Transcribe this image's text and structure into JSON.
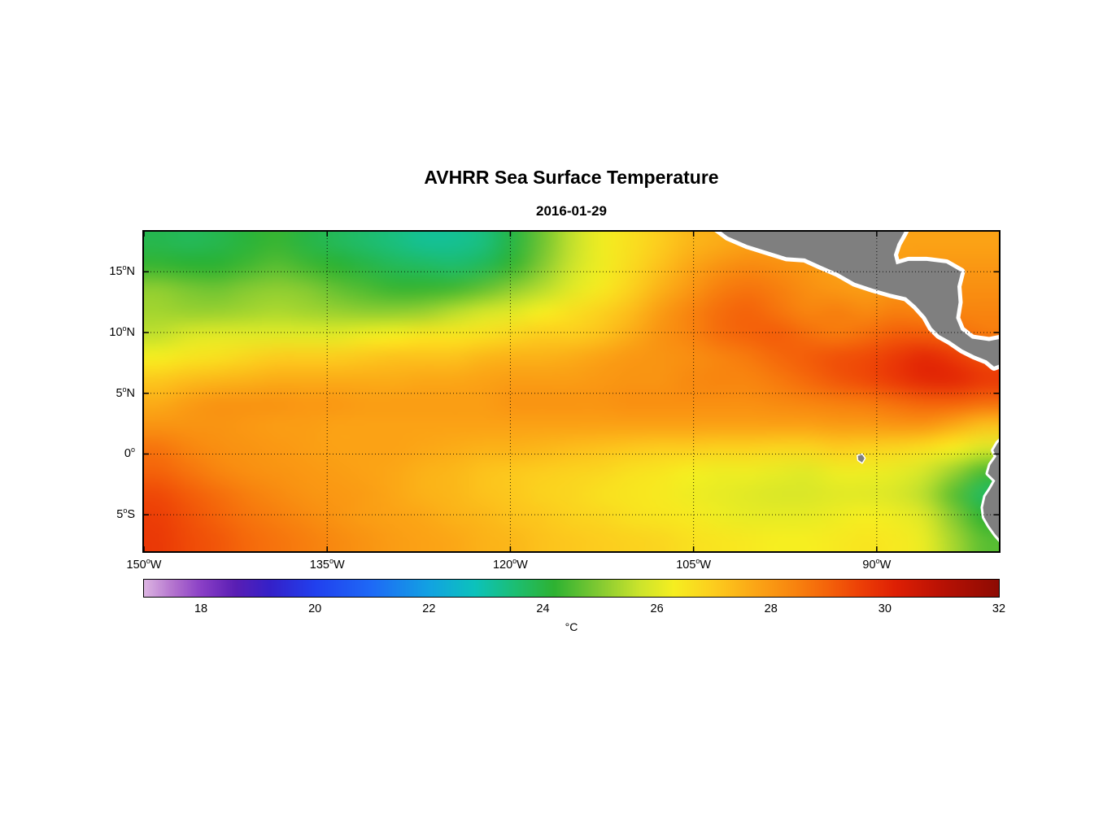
{
  "title": "AVHRR Sea Surface Temperature",
  "subtitle": "2016-01-29",
  "colorbar": {
    "unit": "°C",
    "ticks": [
      18,
      20,
      22,
      24,
      26,
      28,
      30,
      32
    ],
    "range": [
      17,
      32
    ]
  },
  "axes": {
    "degree_marker": "o",
    "xticks": [
      {
        "lon": -150,
        "deg": "150",
        "dir": "W"
      },
      {
        "lon": -135,
        "deg": "135",
        "dir": "W"
      },
      {
        "lon": -120,
        "deg": "120",
        "dir": "W"
      },
      {
        "lon": -105,
        "deg": "105",
        "dir": "W"
      },
      {
        "lon": -90,
        "deg": "90",
        "dir": "W"
      }
    ],
    "yticks": [
      {
        "lat": 15,
        "deg": "15",
        "dir": "N"
      },
      {
        "lat": 10,
        "deg": "10",
        "dir": "N"
      },
      {
        "lat": 5,
        "deg": "5",
        "dir": "N"
      },
      {
        "lat": 0,
        "deg": "0",
        "dir": ""
      },
      {
        "lat": -5,
        "deg": "5",
        "dir": "S"
      }
    ]
  },
  "chart_data": {
    "type": "heatmap",
    "title": "AVHRR Sea Surface Temperature",
    "date": "2016-01-29",
    "units": "°C",
    "lon_range": [
      -150,
      -80
    ],
    "lat_range": [
      -8,
      18.3
    ],
    "colorbar_range": [
      17,
      32
    ],
    "grid_on": true,
    "land_color": "#7f7f7f",
    "coast_halo_color": "#ffffff",
    "grid_lons": [
      -150,
      -147.5,
      -145,
      -142.5,
      -140,
      -137.5,
      -135,
      -132.5,
      -130,
      -127.5,
      -125,
      -122.5,
      -120,
      -117.5,
      -115,
      -112.5,
      -110,
      -107.5,
      -105,
      -102.5,
      -100,
      -97.5,
      -95,
      -92.5,
      -90,
      -87.5,
      -85,
      -82.5,
      -80
    ],
    "grid_lats": [
      18.3,
      16.3,
      14.3,
      12.2,
      10.2,
      8.2,
      6.1,
      4.1,
      2.1,
      0,
      -2,
      -4,
      -6,
      -8
    ],
    "sst_grid": [
      [
        23.9,
        23.8,
        23.9,
        24.1,
        24.3,
        24.0,
        23.8,
        23.6,
        23.4,
        23.2,
        23.2,
        23.4,
        24.0,
        24.8,
        25.6,
        26.2,
        26.6,
        27.0,
        27.4,
        27.6,
        27.8,
        27.8,
        27.8,
        27.8,
        27.8,
        27.8,
        27.8,
        27.8,
        27.8
      ],
      [
        24.3,
        24.2,
        24.2,
        24.4,
        24.6,
        24.4,
        24.2,
        24.0,
        23.8,
        23.7,
        23.6,
        23.8,
        24.3,
        25.0,
        25.7,
        26.2,
        26.7,
        27.2,
        27.7,
        28.1,
        28.3,
        28.2,
        28.0,
        27.8,
        27.8,
        27.9,
        28.0,
        28.0,
        28.0
      ],
      [
        25.1,
        24.9,
        24.8,
        25.0,
        25.1,
        25.0,
        24.7,
        24.5,
        24.3,
        24.3,
        24.4,
        24.7,
        25.1,
        25.5,
        26.0,
        26.4,
        26.9,
        27.5,
        28.0,
        28.5,
        28.7,
        28.5,
        28.2,
        28.0,
        27.9,
        28.1,
        28.2,
        28.2,
        28.2
      ],
      [
        25.3,
        25.2,
        25.2,
        25.3,
        25.4,
        25.3,
        25.2,
        25.1,
        25.1,
        25.2,
        25.5,
        25.8,
        26.0,
        26.3,
        26.6,
        26.9,
        27.3,
        27.9,
        28.4,
        28.8,
        29.0,
        28.7,
        28.4,
        28.5,
        28.3,
        28.5,
        28.4,
        28.4,
        28.4
      ],
      [
        25.6,
        25.9,
        26.0,
        26.0,
        26.0,
        26.0,
        26.0,
        26.2,
        26.3,
        26.5,
        26.5,
        26.6,
        26.8,
        27.0,
        27.0,
        27.2,
        27.6,
        28.1,
        28.4,
        28.8,
        29.0,
        29.1,
        28.8,
        28.6,
        28.8,
        29.1,
        29.1,
        28.9,
        28.6
      ],
      [
        26.3,
        26.5,
        26.6,
        26.8,
        27.0,
        27.0,
        27.0,
        27.1,
        27.2,
        27.2,
        27.2,
        27.4,
        27.5,
        27.5,
        27.6,
        27.8,
        28.0,
        28.1,
        28.2,
        28.4,
        28.6,
        28.9,
        29.1,
        29.3,
        29.4,
        29.7,
        30.0,
        29.7,
        29.3
      ],
      [
        27.1,
        27.3,
        27.4,
        27.5,
        27.6,
        27.6,
        27.6,
        27.6,
        27.6,
        27.7,
        27.7,
        27.8,
        27.9,
        27.9,
        27.9,
        28.0,
        28.1,
        28.1,
        28.3,
        28.4,
        28.4,
        28.6,
        28.9,
        29.2,
        29.4,
        29.7,
        30.0,
        30.0,
        29.7
      ],
      [
        27.6,
        27.9,
        28.1,
        28.1,
        28.1,
        28.0,
        28.0,
        27.9,
        27.9,
        27.9,
        27.9,
        27.9,
        28.1,
        28.1,
        28.1,
        28.1,
        28.2,
        28.2,
        28.2,
        28.2,
        28.2,
        28.3,
        28.4,
        28.5,
        28.6,
        28.8,
        29.0,
        29.0,
        28.8
      ],
      [
        28.1,
        28.1,
        28.1,
        28.0,
        27.9,
        27.9,
        27.8,
        27.8,
        27.8,
        27.8,
        27.8,
        27.8,
        27.8,
        27.8,
        27.8,
        27.8,
        27.8,
        27.8,
        27.8,
        27.8,
        27.8,
        27.8,
        27.8,
        27.9,
        27.9,
        28.0,
        28.0,
        27.6,
        27.2
      ],
      [
        28.7,
        28.4,
        28.2,
        28.1,
        28.0,
        27.9,
        27.8,
        27.8,
        27.8,
        27.7,
        27.6,
        27.5,
        27.5,
        27.4,
        27.3,
        27.2,
        27.1,
        27.0,
        27.0,
        26.9,
        26.9,
        26.8,
        26.8,
        27.0,
        26.9,
        26.8,
        26.6,
        26.3,
        25.9
      ],
      [
        29.0,
        28.7,
        28.4,
        28.2,
        28.1,
        28.0,
        27.9,
        27.8,
        27.7,
        27.5,
        27.4,
        27.2,
        27.1,
        27.0,
        26.9,
        26.8,
        26.6,
        26.5,
        26.3,
        26.2,
        26.2,
        26.1,
        26.0,
        26.2,
        26.2,
        26.1,
        25.8,
        25.2,
        24.5
      ],
      [
        29.4,
        29.1,
        28.8,
        28.5,
        28.3,
        28.1,
        28.0,
        27.9,
        27.7,
        27.5,
        27.4,
        27.2,
        27.1,
        26.9,
        26.8,
        26.6,
        26.5,
        26.4,
        26.2,
        26.1,
        26.0,
        25.9,
        25.9,
        26.0,
        26.0,
        25.9,
        25.5,
        24.6,
        23.7
      ],
      [
        29.6,
        29.3,
        29.0,
        28.7,
        28.5,
        28.3,
        28.1,
        27.9,
        27.8,
        27.7,
        27.5,
        27.4,
        27.2,
        27.1,
        26.9,
        26.8,
        26.6,
        26.5,
        26.4,
        26.2,
        26.1,
        26.1,
        26.1,
        26.2,
        26.3,
        26.2,
        25.9,
        25.0,
        24.2
      ],
      [
        29.7,
        29.4,
        29.2,
        28.9,
        28.7,
        28.5,
        28.3,
        28.1,
        27.9,
        27.8,
        27.7,
        27.5,
        27.4,
        27.2,
        27.1,
        27.0,
        26.9,
        26.8,
        26.6,
        26.5,
        26.4,
        26.3,
        26.3,
        26.4,
        26.5,
        26.4,
        26.1,
        25.3,
        24.6
      ]
    ],
    "colormap_stops": [
      [
        17.0,
        "#dcb4e2"
      ],
      [
        17.5,
        "#b474ce"
      ],
      [
        18.0,
        "#8a3fc6"
      ],
      [
        18.6,
        "#5a1eb4"
      ],
      [
        19.2,
        "#3520c8"
      ],
      [
        20.0,
        "#2140ee"
      ],
      [
        21.0,
        "#1e6af6"
      ],
      [
        22.0,
        "#12a2e2"
      ],
      [
        22.8,
        "#0cc2bc"
      ],
      [
        23.5,
        "#1cbe74"
      ],
      [
        24.2,
        "#2eb232"
      ],
      [
        25.0,
        "#84ca32"
      ],
      [
        25.7,
        "#cce42c"
      ],
      [
        26.3,
        "#f6ee20"
      ],
      [
        27.0,
        "#fccd1e"
      ],
      [
        27.7,
        "#fba716"
      ],
      [
        28.4,
        "#f8850f"
      ],
      [
        29.0,
        "#f4630a"
      ],
      [
        29.6,
        "#ec3e06"
      ],
      [
        30.2,
        "#de1f04"
      ],
      [
        31.0,
        "#b91104"
      ],
      [
        32.0,
        "#8e0b03"
      ]
    ],
    "land_polygons": [
      {
        "name": "central-america",
        "halo": 10,
        "points": [
          [
            -103.4,
            18.8
          ],
          [
            -102.2,
            17.9
          ],
          [
            -100.6,
            17.2
          ],
          [
            -99.0,
            16.7
          ],
          [
            -97.4,
            16.2
          ],
          [
            -95.9,
            16.1
          ],
          [
            -94.6,
            15.5
          ],
          [
            -93.2,
            14.9
          ],
          [
            -91.8,
            14.1
          ],
          [
            -90.3,
            13.6
          ],
          [
            -88.9,
            13.2
          ],
          [
            -87.6,
            12.9
          ],
          [
            -86.8,
            12.2
          ],
          [
            -86.0,
            11.3
          ],
          [
            -85.5,
            10.4
          ],
          [
            -84.9,
            9.8
          ],
          [
            -84.0,
            9.3
          ],
          [
            -83.0,
            8.6
          ],
          [
            -82.0,
            8.1
          ],
          [
            -81.0,
            7.7
          ],
          [
            -80.4,
            7.2
          ],
          [
            -79.6,
            7.5
          ],
          [
            -79.3,
            8.3
          ],
          [
            -79.3,
            9.6
          ],
          [
            -80.8,
            9.3
          ],
          [
            -82.2,
            9.5
          ],
          [
            -83.1,
            10.2
          ],
          [
            -83.5,
            11.2
          ],
          [
            -83.3,
            12.5
          ],
          [
            -83.4,
            13.8
          ],
          [
            -83.1,
            15.0
          ],
          [
            -84.3,
            15.7
          ],
          [
            -85.9,
            15.9
          ],
          [
            -87.4,
            15.9
          ],
          [
            -88.4,
            15.6
          ],
          [
            -88.6,
            16.4
          ],
          [
            -88.3,
            17.3
          ],
          [
            -87.8,
            18.2
          ],
          [
            -87.5,
            18.8
          ]
        ]
      },
      {
        "name": "south-america",
        "halo": 6,
        "points": [
          [
            -79.2,
            1.8
          ],
          [
            -80.1,
            0.9
          ],
          [
            -80.45,
            0.3
          ],
          [
            -80.2,
            -0.2
          ],
          [
            -80.7,
            -0.9
          ],
          [
            -80.9,
            -1.6
          ],
          [
            -80.3,
            -2.2
          ],
          [
            -80.7,
            -2.9
          ],
          [
            -81.1,
            -3.5
          ],
          [
            -81.3,
            -4.4
          ],
          [
            -81.2,
            -5.2
          ],
          [
            -80.8,
            -5.9
          ],
          [
            -80.3,
            -6.6
          ],
          [
            -79.7,
            -7.3
          ],
          [
            -79.2,
            -8.4
          ],
          [
            -78.5,
            -8.4
          ],
          [
            -78.5,
            1.8
          ]
        ]
      },
      {
        "name": "galapagos-island",
        "halo": 3,
        "points": [
          [
            -91.55,
            -0.15
          ],
          [
            -91.2,
            -0.05
          ],
          [
            -91.0,
            -0.35
          ],
          [
            -91.2,
            -0.7
          ],
          [
            -91.5,
            -0.5
          ]
        ]
      }
    ]
  }
}
